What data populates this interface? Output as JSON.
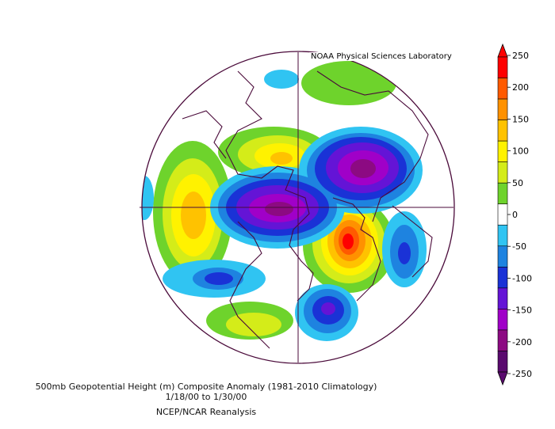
{
  "credit": "NOAA Physical Sciences Laboratory",
  "caption": {
    "line1": "500mb Geopotential Height (m) Composite Anomaly (1981-2010 Climatology)",
    "line2": "1/18/00   to 1/30/00",
    "line3": "NCEP/NCAR Reanalysis"
  },
  "colorbar": {
    "ticks": [
      "250",
      "200",
      "150",
      "100",
      "50",
      "0",
      "-50",
      "-100",
      "-150",
      "-200",
      "-250"
    ],
    "colors": [
      "#fe0000",
      "#ff5a00",
      "#ff9100",
      "#ffc200",
      "#fff200",
      "#d4ec19",
      "#6ed32c",
      "#ffffff",
      "#30c4f2",
      "#1e83e0",
      "#1a32d6",
      "#6414d6",
      "#a000c8",
      "#8c0a82",
      "#5a0a6e"
    ]
  },
  "map": {
    "region": "Northern Hemisphere polar stereographic",
    "positive_color": "#fe0000",
    "negative_color": "#5a0a6e"
  }
}
